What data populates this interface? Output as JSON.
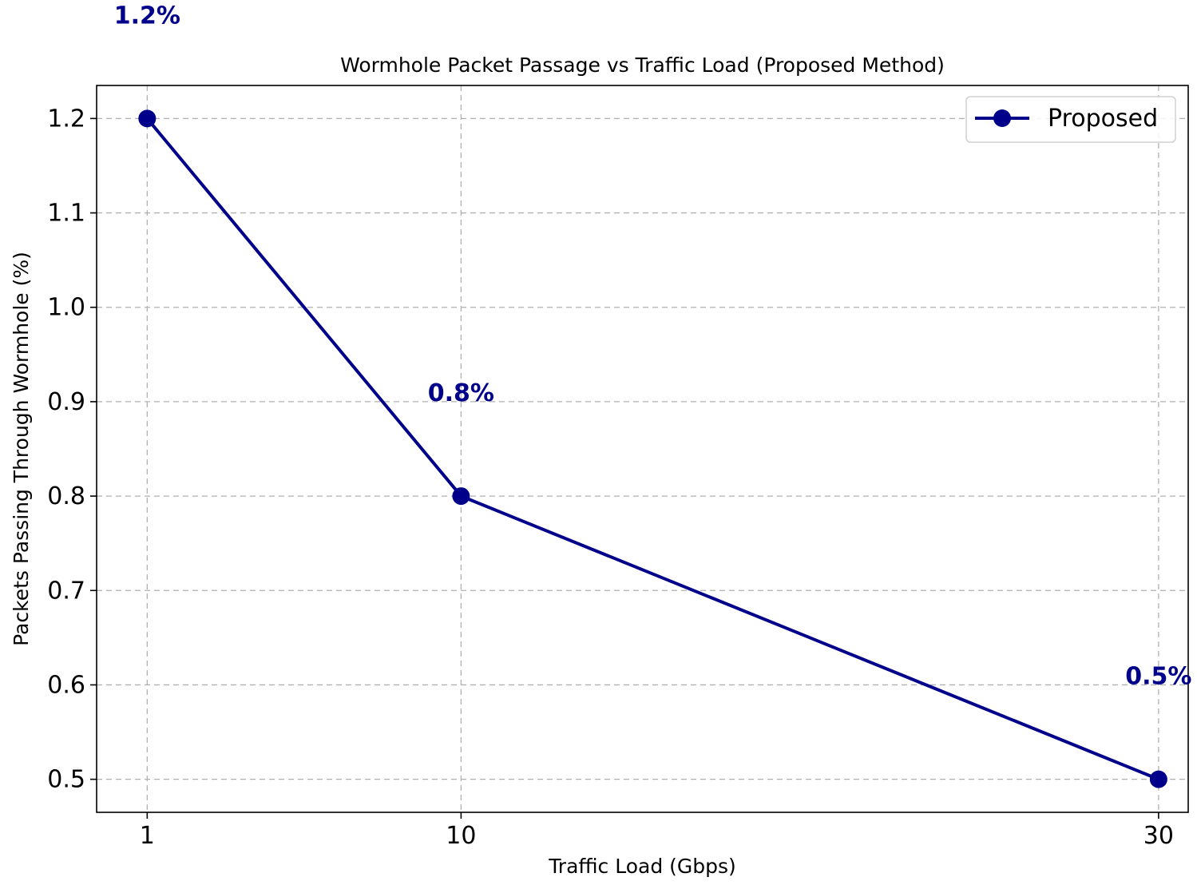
{
  "chart_data": {
    "type": "line",
    "title": "Wormhole Packet Passage vs Traffic Load (Proposed Method)",
    "xlabel": "Traffic Load (Gbps)",
    "ylabel": "Packets Passing Through Wormhole (%)",
    "x": [
      1,
      10,
      30
    ],
    "x_tick_labels": [
      "1",
      "10",
      "30"
    ],
    "xlim": [
      -0.45,
      30.85
    ],
    "ylim": [
      0.465,
      1.235
    ],
    "y_ticks": [
      0.5,
      0.6,
      0.7,
      0.8,
      0.9,
      1.0,
      1.1,
      1.2
    ],
    "y_tick_labels": [
      "0.5",
      "0.6",
      "0.7",
      "0.8",
      "0.9",
      "1.0",
      "1.1",
      "1.2"
    ],
    "grid": true,
    "legend_position": "top-right",
    "series": [
      {
        "name": "Proposed",
        "color": "#00008b",
        "marker": "circle",
        "values": [
          1.2,
          0.8,
          0.5
        ],
        "data_labels": [
          "1.2%",
          "0.8%",
          "0.5%"
        ]
      }
    ]
  }
}
